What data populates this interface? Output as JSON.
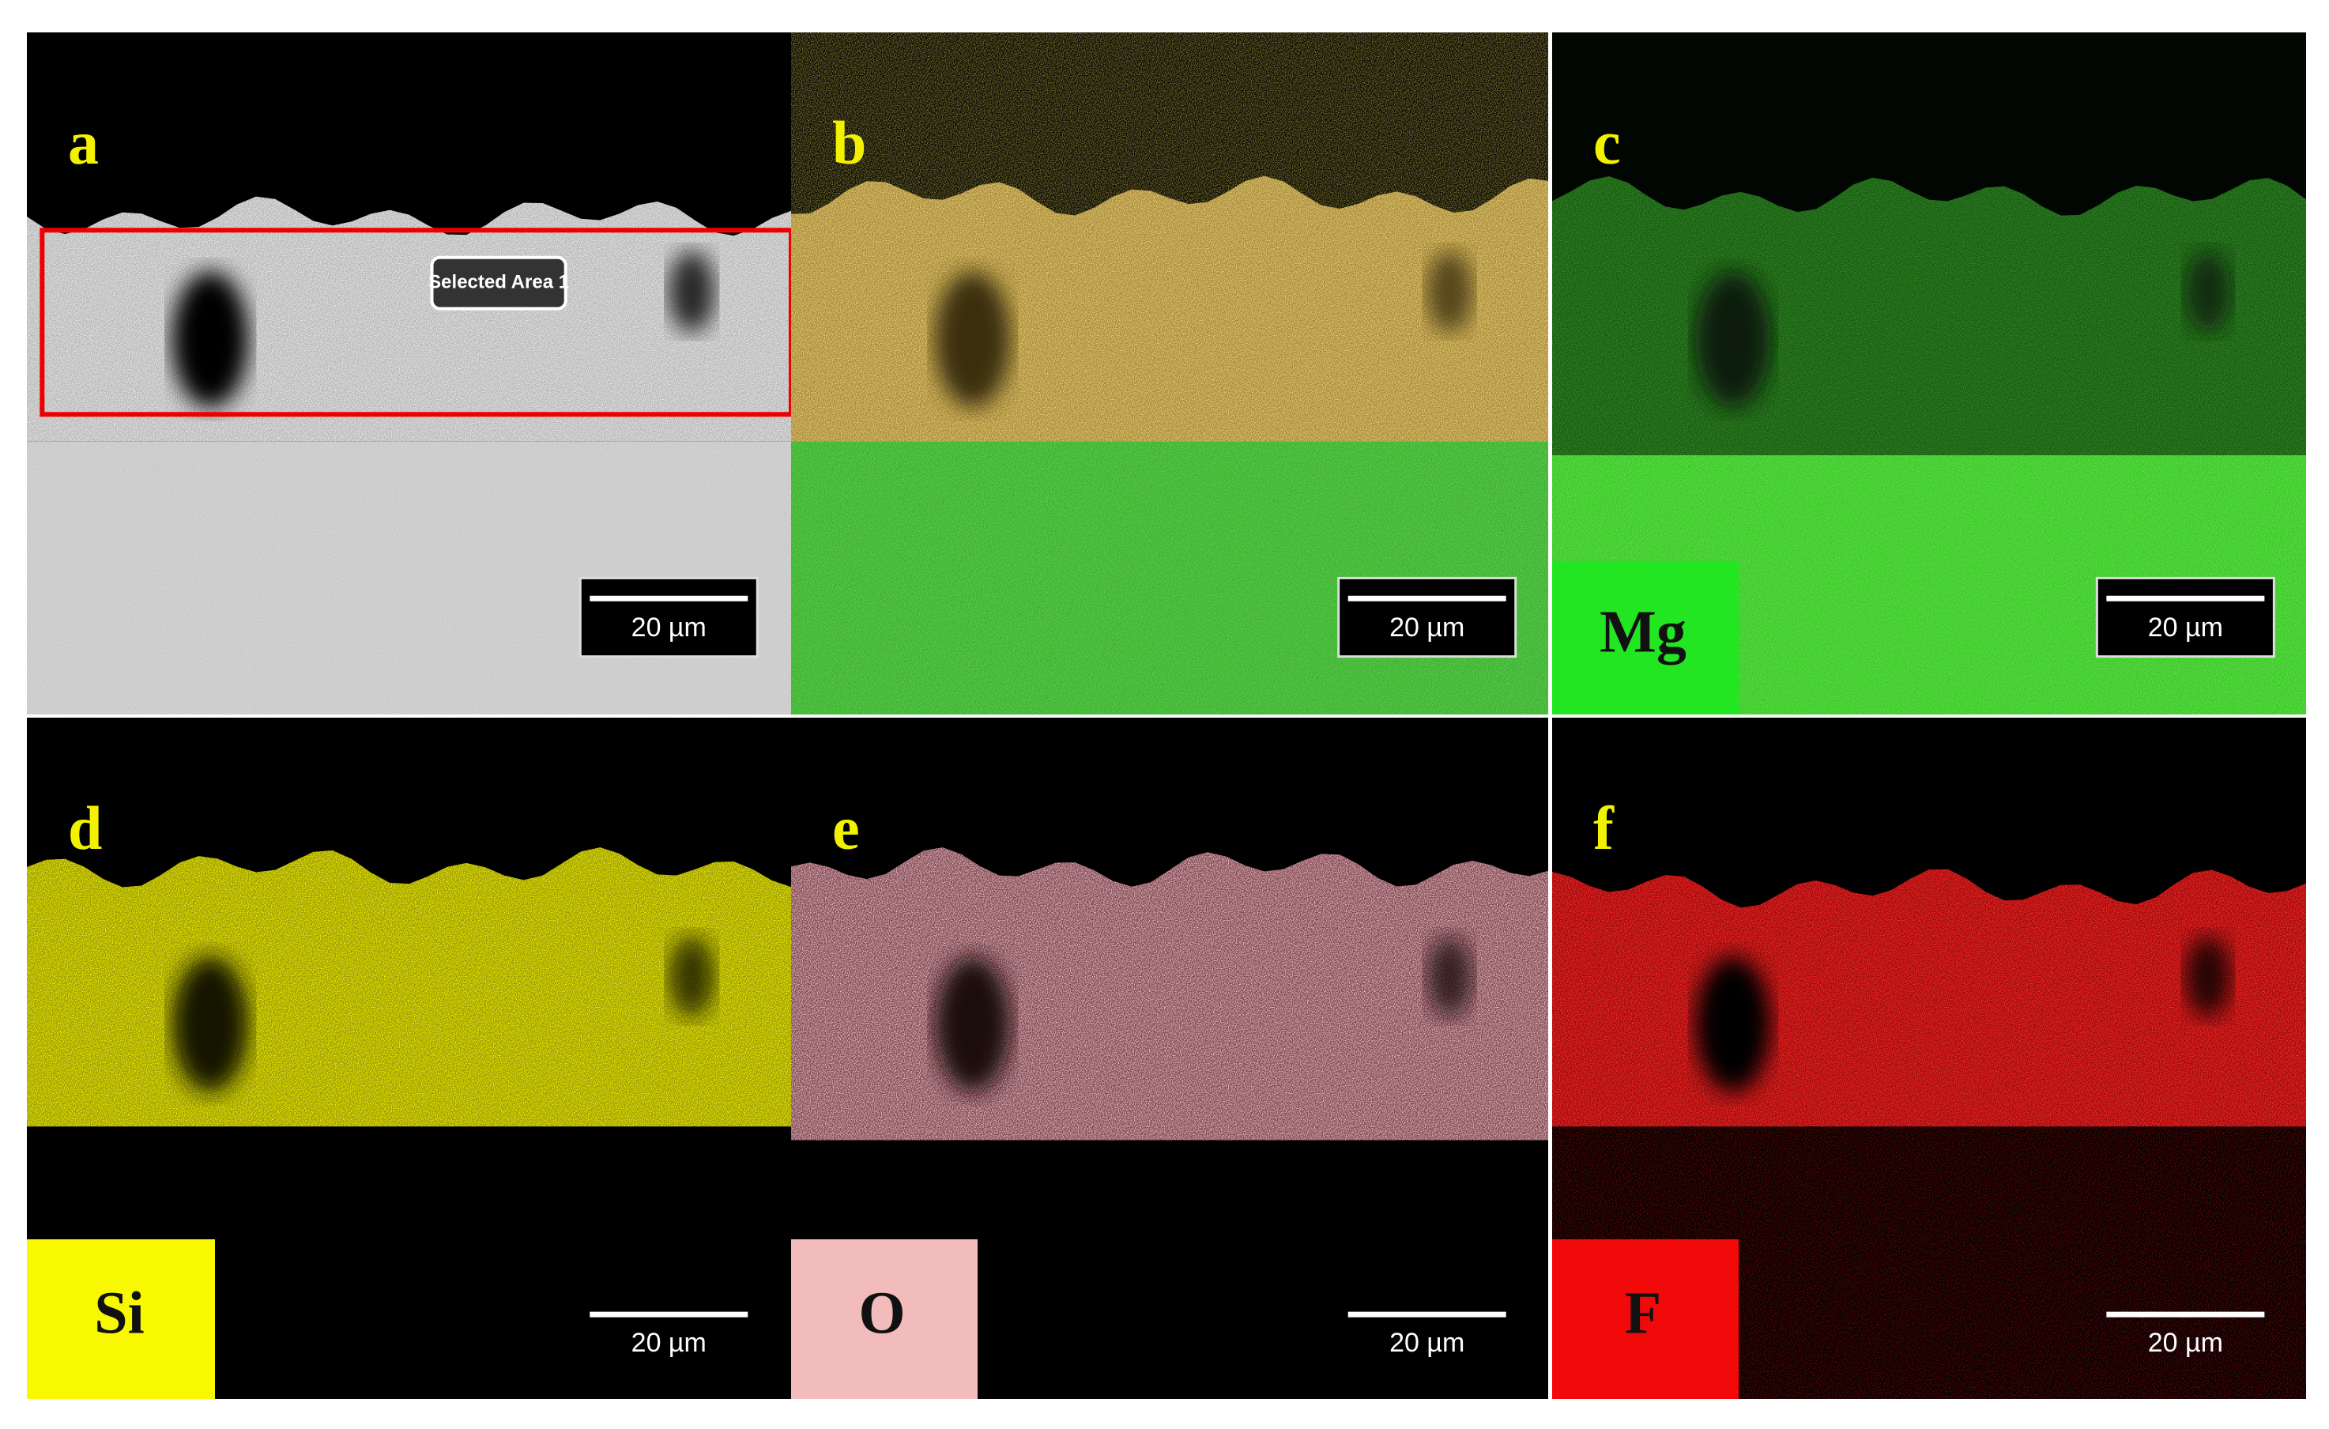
{
  "panels": [
    {
      "label": "a",
      "scale_bar": "20 µm",
      "annotation": "Selected Area 1"
    },
    {
      "label": "b",
      "scale_bar": "20 µm"
    },
    {
      "label": "c",
      "element": "Mg",
      "scale_bar": "20 µm"
    },
    {
      "label": "d",
      "element": "Si",
      "scale_bar": "20 µm"
    },
    {
      "label": "e",
      "element": "O",
      "scale_bar": "20 µm"
    },
    {
      "label": "f",
      "element": "F",
      "scale_bar": "20 µm"
    }
  ]
}
